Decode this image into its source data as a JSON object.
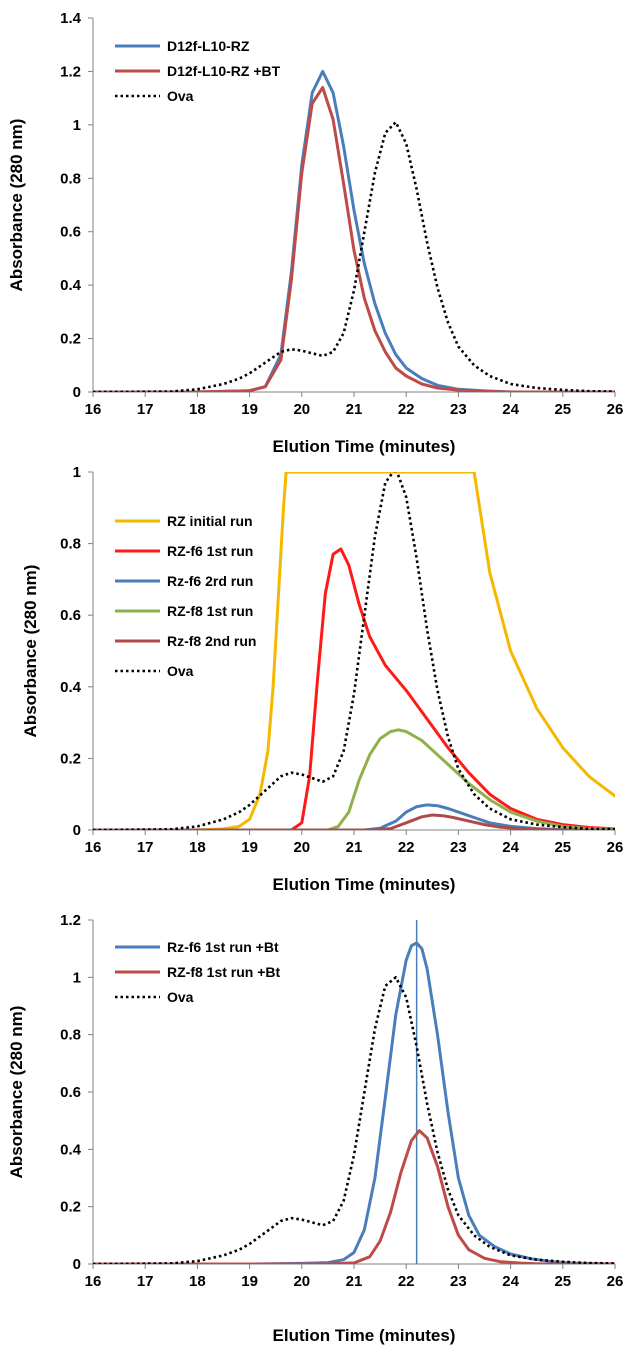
{
  "chart_data": [
    {
      "type": "line",
      "xlabel": "Elution Time (minutes)",
      "ylabel": "Absorbance (280 nm)",
      "xlim": [
        16,
        26
      ],
      "ylim": [
        0,
        1.4
      ],
      "xticks": [
        "16",
        "17",
        "18",
        "19",
        "20",
        "21",
        "22",
        "23",
        "24",
        "25",
        "26"
      ],
      "yticks": [
        "0",
        "0.2",
        "0.4",
        "0.6",
        "0.8",
        "1",
        "1.2",
        "1.4"
      ],
      "legend_position": "top-left",
      "series": [
        {
          "name": "D12f-L10-RZ",
          "color": "#4a7ebb",
          "dash": "solid",
          "x": [
            16,
            18,
            19,
            19.3,
            19.6,
            19.8,
            20,
            20.2,
            20.4,
            20.6,
            20.8,
            21,
            21.2,
            21.4,
            21.6,
            21.8,
            22,
            22.3,
            22.6,
            23,
            23.5,
            24,
            26
          ],
          "y": [
            0,
            0,
            0.005,
            0.02,
            0.14,
            0.45,
            0.85,
            1.12,
            1.2,
            1.12,
            0.92,
            0.68,
            0.48,
            0.33,
            0.22,
            0.14,
            0.09,
            0.05,
            0.025,
            0.01,
            0.004,
            0,
            0
          ]
        },
        {
          "name": "D12f-L10-RZ +BT",
          "color": "#be4b48",
          "dash": "solid",
          "x": [
            16,
            18,
            19,
            19.3,
            19.6,
            19.8,
            20,
            20.2,
            20.4,
            20.6,
            20.8,
            21,
            21.2,
            21.4,
            21.6,
            21.8,
            22,
            22.3,
            22.6,
            23,
            23.5,
            24,
            26
          ],
          "y": [
            0,
            0,
            0.005,
            0.02,
            0.12,
            0.42,
            0.82,
            1.08,
            1.14,
            1.02,
            0.78,
            0.53,
            0.35,
            0.23,
            0.15,
            0.09,
            0.06,
            0.03,
            0.015,
            0.007,
            0.003,
            0,
            0
          ]
        },
        {
          "name": "Ova",
          "color": "#000000",
          "dash": "dotted",
          "x": [
            16,
            17.5,
            18,
            18.5,
            18.8,
            19,
            19.3,
            19.6,
            19.8,
            20,
            20.2,
            20.4,
            20.6,
            20.8,
            21,
            21.2,
            21.4,
            21.6,
            21.8,
            22,
            22.2,
            22.4,
            22.6,
            22.8,
            23,
            23.3,
            23.6,
            24,
            24.5,
            25,
            25.5,
            26
          ],
          "y": [
            0,
            0.002,
            0.01,
            0.03,
            0.05,
            0.07,
            0.11,
            0.15,
            0.16,
            0.155,
            0.145,
            0.135,
            0.15,
            0.22,
            0.38,
            0.6,
            0.82,
            0.97,
            1.01,
            0.93,
            0.76,
            0.56,
            0.39,
            0.26,
            0.17,
            0.1,
            0.06,
            0.03,
            0.015,
            0.008,
            0.003,
            0.002
          ]
        }
      ]
    },
    {
      "type": "line",
      "xlabel": "Elution Time (minutes)",
      "ylabel": "Absorbance (280 nm)",
      "xlim": [
        16,
        26
      ],
      "ylim": [
        0,
        1
      ],
      "xticks": [
        "16",
        "17",
        "18",
        "19",
        "20",
        "21",
        "22",
        "23",
        "24",
        "25",
        "26"
      ],
      "yticks": [
        "0",
        "0.2",
        "0.4",
        "0.6",
        "0.8",
        "1"
      ],
      "legend_position": "top-left",
      "series": [
        {
          "name": "RZ initial run",
          "color": "#f5b800",
          "dash": "solid",
          "x": [
            16,
            18,
            18.5,
            18.8,
            19,
            19.2,
            19.35,
            19.45,
            19.55,
            19.65,
            19.7,
            23.3,
            23.6,
            24,
            24.5,
            25,
            25.5,
            26
          ],
          "y": [
            0,
            0,
            0.003,
            0.01,
            0.03,
            0.1,
            0.22,
            0.4,
            0.65,
            0.9,
            1.0,
            1.0,
            0.72,
            0.5,
            0.34,
            0.23,
            0.15,
            0.095
          ]
        },
        {
          "name": "RZ-f6 1st run",
          "color": "#ff1a1a",
          "dash": "solid",
          "x": [
            16,
            19.8,
            20,
            20.15,
            20.3,
            20.45,
            20.6,
            20.75,
            20.9,
            21.1,
            21.3,
            21.6,
            22,
            22.4,
            22.8,
            23.2,
            23.6,
            24,
            24.5,
            25,
            25.5,
            26
          ],
          "y": [
            0,
            0,
            0.02,
            0.15,
            0.42,
            0.66,
            0.77,
            0.785,
            0.74,
            0.63,
            0.54,
            0.46,
            0.39,
            0.31,
            0.23,
            0.16,
            0.1,
            0.06,
            0.03,
            0.015,
            0.007,
            0.003
          ]
        },
        {
          "name": "Rz-f6 2rd run",
          "color": "#4a7ebb",
          "dash": "solid",
          "x": [
            16,
            21.2,
            21.5,
            21.8,
            22,
            22.2,
            22.4,
            22.6,
            22.8,
            23,
            23.3,
            23.6,
            24,
            24.5,
            25,
            26
          ],
          "y": [
            0,
            0,
            0.005,
            0.025,
            0.05,
            0.065,
            0.07,
            0.068,
            0.06,
            0.05,
            0.035,
            0.02,
            0.01,
            0.004,
            0.001,
            0
          ]
        },
        {
          "name": "RZ-f8 1st run",
          "color": "#8fb04a",
          "dash": "solid",
          "x": [
            16,
            20.5,
            20.7,
            20.9,
            21.1,
            21.3,
            21.5,
            21.7,
            21.85,
            22,
            22.3,
            22.6,
            22.9,
            23.2,
            23.6,
            24,
            24.5,
            25,
            25.5,
            26
          ],
          "y": [
            0,
            0,
            0.01,
            0.05,
            0.14,
            0.21,
            0.255,
            0.275,
            0.28,
            0.275,
            0.25,
            0.21,
            0.17,
            0.13,
            0.085,
            0.05,
            0.025,
            0.01,
            0.004,
            0.002
          ]
        },
        {
          "name": "Rz-f8 2nd run",
          "color": "#b04a4a",
          "dash": "solid",
          "x": [
            16,
            21.4,
            21.7,
            22,
            22.3,
            22.5,
            22.7,
            22.9,
            23.2,
            23.5,
            23.8,
            24.2,
            24.6,
            25,
            26
          ],
          "y": [
            0,
            0,
            0.004,
            0.02,
            0.037,
            0.042,
            0.04,
            0.035,
            0.025,
            0.015,
            0.008,
            0.003,
            0.001,
            0,
            0
          ]
        },
        {
          "name": "Ova",
          "color": "#000000",
          "dash": "dotted",
          "x": [
            16,
            17.5,
            18,
            18.5,
            18.8,
            19,
            19.3,
            19.6,
            19.8,
            20,
            20.2,
            20.4,
            20.6,
            20.8,
            21,
            21.2,
            21.4,
            21.6,
            21.8,
            22,
            22.2,
            22.4,
            22.6,
            22.8,
            23,
            23.3,
            23.6,
            24,
            24.5,
            25,
            25.5,
            26
          ],
          "y": [
            0,
            0.002,
            0.01,
            0.03,
            0.05,
            0.07,
            0.11,
            0.15,
            0.16,
            0.155,
            0.145,
            0.135,
            0.15,
            0.22,
            0.38,
            0.6,
            0.82,
            0.97,
            1.01,
            0.93,
            0.76,
            0.56,
            0.39,
            0.26,
            0.17,
            0.1,
            0.06,
            0.03,
            0.015,
            0.008,
            0.003,
            0.002
          ]
        }
      ]
    },
    {
      "type": "line",
      "xlabel": "Elution Time (minutes)",
      "ylabel": "Absorbance (280 nm)",
      "xlim": [
        16,
        26
      ],
      "ylim": [
        0,
        1.2
      ],
      "xticks": [
        "16",
        "17",
        "18",
        "19",
        "20",
        "21",
        "22",
        "23",
        "24",
        "25",
        "26"
      ],
      "yticks": [
        "0",
        "0.2",
        "0.4",
        "0.6",
        "0.8",
        "1",
        "1.2"
      ],
      "legend_position": "top-left",
      "vertical_line": {
        "x": 22.2,
        "color": "#4a7ebb"
      },
      "series": [
        {
          "name": "Rz-f6 1st run +Bt",
          "color": "#4a7ebb",
          "dash": "solid",
          "x": [
            16,
            19,
            20,
            20.5,
            20.8,
            21,
            21.2,
            21.4,
            21.6,
            21.8,
            22,
            22.1,
            22.2,
            22.3,
            22.4,
            22.6,
            22.8,
            23,
            23.2,
            23.4,
            23.7,
            24,
            24.4,
            24.8,
            25.2,
            26
          ],
          "y": [
            0,
            0,
            0.002,
            0.005,
            0.015,
            0.04,
            0.12,
            0.3,
            0.58,
            0.87,
            1.06,
            1.11,
            1.12,
            1.1,
            1.03,
            0.8,
            0.53,
            0.3,
            0.17,
            0.1,
            0.06,
            0.035,
            0.018,
            0.008,
            0.003,
            0
          ]
        },
        {
          "name": "RZ-f8 1st run +Bt",
          "color": "#be4b48",
          "dash": "solid",
          "x": [
            16,
            20.5,
            21,
            21.3,
            21.5,
            21.7,
            21.9,
            22.1,
            22.25,
            22.4,
            22.6,
            22.8,
            23,
            23.2,
            23.5,
            23.8,
            24.2,
            24.6,
            26
          ],
          "y": [
            0,
            0,
            0.004,
            0.025,
            0.08,
            0.18,
            0.32,
            0.43,
            0.465,
            0.44,
            0.34,
            0.2,
            0.1,
            0.05,
            0.02,
            0.008,
            0.003,
            0,
            0
          ]
        },
        {
          "name": "Ova",
          "color": "#000000",
          "dash": "dotted",
          "x": [
            16,
            17.5,
            18,
            18.5,
            18.8,
            19,
            19.3,
            19.6,
            19.8,
            20,
            20.2,
            20.4,
            20.6,
            20.8,
            21,
            21.2,
            21.4,
            21.6,
            21.8,
            22,
            22.2,
            22.4,
            22.6,
            22.8,
            23,
            23.3,
            23.6,
            24,
            24.5,
            25,
            25.5,
            26
          ],
          "y": [
            0,
            0.002,
            0.01,
            0.03,
            0.05,
            0.07,
            0.11,
            0.15,
            0.16,
            0.155,
            0.145,
            0.135,
            0.15,
            0.22,
            0.38,
            0.6,
            0.82,
            0.97,
            1.0,
            0.93,
            0.76,
            0.56,
            0.39,
            0.26,
            0.17,
            0.1,
            0.06,
            0.03,
            0.015,
            0.008,
            0.003,
            0.002
          ]
        }
      ]
    }
  ]
}
